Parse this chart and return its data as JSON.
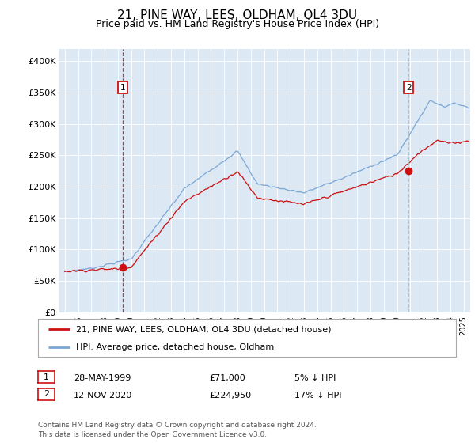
{
  "title": "21, PINE WAY, LEES, OLDHAM, OL4 3DU",
  "subtitle": "Price paid vs. HM Land Registry's House Price Index (HPI)",
  "ylabel_ticks": [
    "£0",
    "£50K",
    "£100K",
    "£150K",
    "£200K",
    "£250K",
    "£300K",
    "£350K",
    "£400K"
  ],
  "ylim": [
    0,
    420000
  ],
  "xlim_start": 1994.6,
  "xlim_end": 2025.5,
  "plot_bg_color": "#dce9f5",
  "hpi_color": "#7ba7d4",
  "price_color": "#cc1111",
  "marker1_x": 1999.38,
  "marker1_y": 71000,
  "marker2_x": 2020.87,
  "marker2_y": 224950,
  "marker2_line_color": "#aabbcc",
  "legend_label1": "21, PINE WAY, LEES, OLDHAM, OL4 3DU (detached house)",
  "legend_label2": "HPI: Average price, detached house, Oldham",
  "note1_date": "28-MAY-1999",
  "note1_price": "£71,000",
  "note1_hpi": "5% ↓ HPI",
  "note2_date": "12-NOV-2020",
  "note2_price": "£224,950",
  "note2_hpi": "17% ↓ HPI",
  "footer": "Contains HM Land Registry data © Crown copyright and database right 2024.\nThis data is licensed under the Open Government Licence v3.0."
}
